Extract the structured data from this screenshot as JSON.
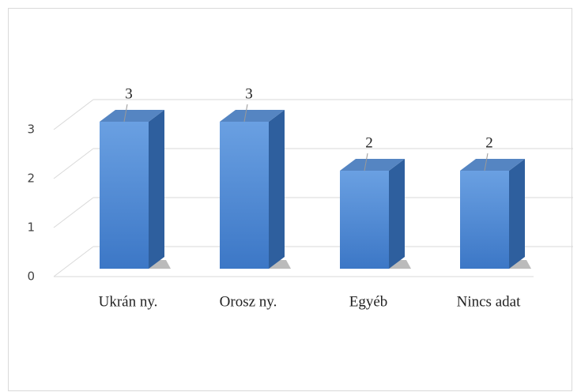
{
  "chart_data": {
    "type": "bar3d",
    "categories": [
      "Ukrán ny.",
      "Orosz ny.",
      "Egyéb",
      "Nincs adat"
    ],
    "values": [
      3,
      3,
      2,
      2
    ],
    "color": "#4a86d4",
    "ylim": [
      0,
      3
    ],
    "yticks": [
      0,
      1,
      2,
      3
    ],
    "grid": true
  }
}
